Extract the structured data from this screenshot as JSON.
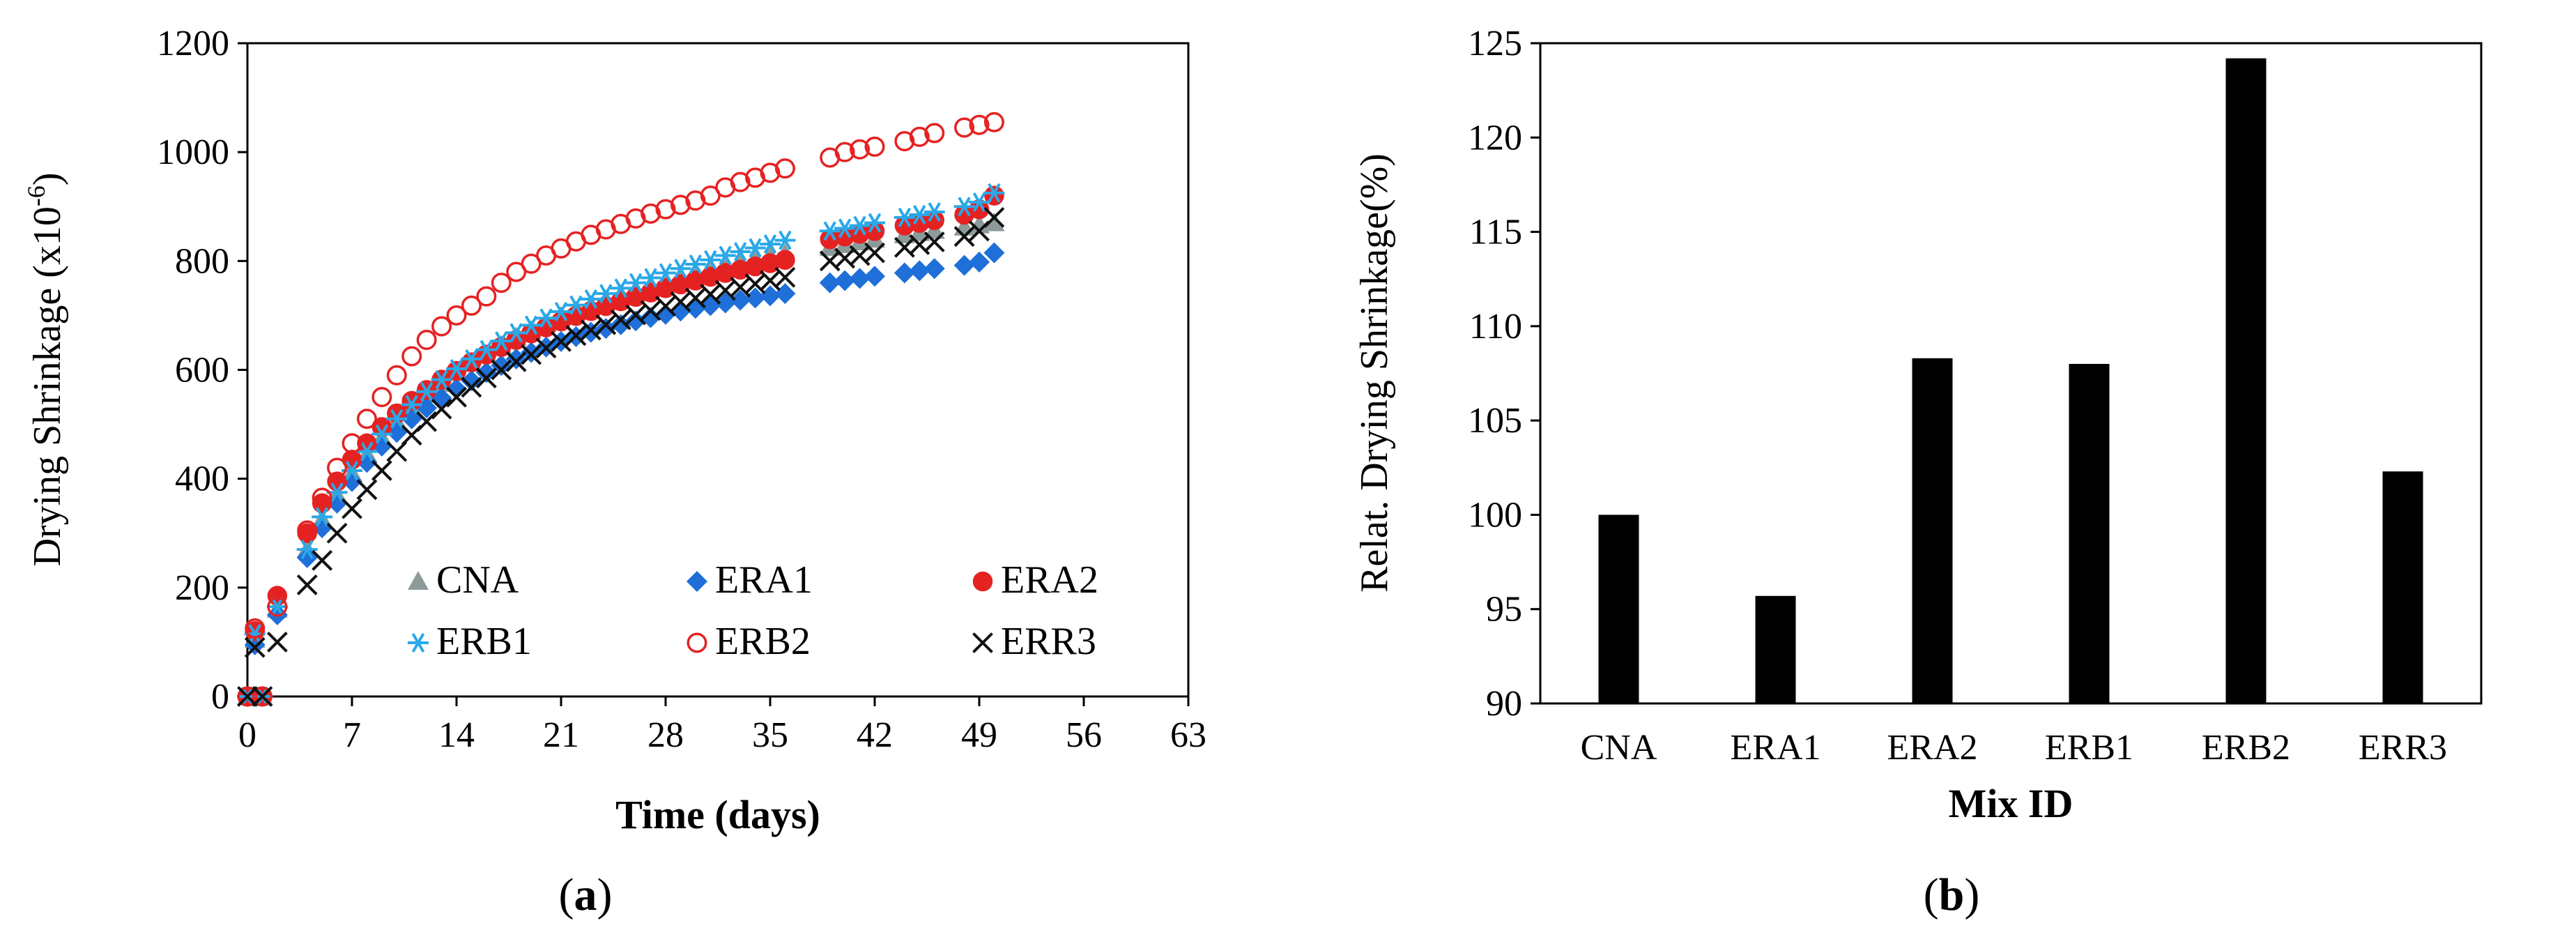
{
  "chart_data": [
    {
      "type": "scatter",
      "panel_label": "a",
      "xlabel": "Time (days)",
      "ylabel": "Drying Shrinkage (x10",
      "ylabel_exp": "-6",
      "ylabel_close": ")",
      "xlim": [
        0,
        63
      ],
      "ylim": [
        0,
        1200
      ],
      "x_ticks": [
        0,
        7,
        14,
        21,
        28,
        35,
        42,
        49,
        56,
        63
      ],
      "y_ticks": [
        0,
        200,
        400,
        600,
        800,
        1000,
        1200
      ],
      "grid": false,
      "legend": "inside-bottom-right",
      "series": [
        {
          "name": "CNA",
          "marker": "triangle",
          "color": "#8d9a9a",
          "x": [
            0,
            0.5,
            1,
            2,
            4,
            5,
            6,
            7,
            8,
            9,
            10,
            11,
            12,
            13,
            14,
            15,
            16,
            17,
            18,
            19,
            20,
            21,
            22,
            23,
            24,
            25,
            26,
            27,
            28,
            29,
            30,
            31,
            32,
            33,
            34,
            35,
            36,
            39,
            40,
            41,
            42,
            44,
            45,
            46,
            48,
            49,
            50
          ],
          "y": [
            0,
            105,
            0,
            160,
            270,
            325,
            370,
            410,
            445,
            475,
            505,
            530,
            555,
            575,
            595,
            612,
            628,
            645,
            660,
            672,
            685,
            698,
            708,
            718,
            728,
            738,
            747,
            755,
            763,
            770,
            777,
            784,
            790,
            796,
            802,
            808,
            813,
            825,
            830,
            835,
            840,
            848,
            852,
            856,
            862,
            866,
            870
          ]
        },
        {
          "name": "ERA1",
          "marker": "diamond",
          "color": "#1e6fd8",
          "x": [
            0,
            0.5,
            1,
            2,
            4,
            5,
            6,
            7,
            8,
            9,
            10,
            11,
            12,
            13,
            14,
            15,
            16,
            17,
            18,
            19,
            20,
            21,
            22,
            23,
            24,
            25,
            26,
            27,
            28,
            29,
            30,
            31,
            32,
            33,
            34,
            35,
            36,
            39,
            40,
            41,
            42,
            44,
            45,
            46,
            48,
            49,
            50
          ],
          "y": [
            0,
            95,
            0,
            150,
            255,
            310,
            355,
            395,
            430,
            460,
            485,
            510,
            530,
            548,
            565,
            580,
            595,
            608,
            620,
            632,
            642,
            652,
            661,
            669,
            676,
            683,
            690,
            696,
            702,
            708,
            713,
            718,
            723,
            728,
            732,
            736,
            740,
            760,
            764,
            768,
            772,
            778,
            782,
            786,
            792,
            798,
            815
          ]
        },
        {
          "name": "ERA2",
          "marker": "circle-filled",
          "color": "#e52222",
          "x": [
            0,
            0.5,
            1,
            2,
            4,
            5,
            6,
            7,
            8,
            9,
            10,
            11,
            12,
            13,
            14,
            15,
            16,
            17,
            18,
            19,
            20,
            21,
            22,
            23,
            24,
            25,
            26,
            27,
            28,
            29,
            30,
            31,
            32,
            33,
            34,
            35,
            36,
            39,
            40,
            41,
            42,
            44,
            45,
            46,
            48,
            49,
            50
          ],
          "y": [
            0,
            120,
            0,
            185,
            300,
            355,
            395,
            435,
            465,
            495,
            520,
            543,
            563,
            582,
            598,
            614,
            628,
            642,
            655,
            667,
            678,
            689,
            699,
            708,
            717,
            726,
            734,
            742,
            750,
            757,
            764,
            771,
            778,
            784,
            790,
            796,
            802,
            840,
            845,
            850,
            855,
            865,
            870,
            875,
            885,
            895,
            920
          ]
        },
        {
          "name": "ERB1",
          "marker": "asterisk",
          "color": "#2aa8e8",
          "x": [
            0,
            0.5,
            1,
            2,
            4,
            5,
            6,
            7,
            8,
            9,
            10,
            11,
            12,
            13,
            14,
            15,
            16,
            17,
            18,
            19,
            20,
            21,
            22,
            23,
            24,
            25,
            26,
            27,
            28,
            29,
            30,
            31,
            32,
            33,
            34,
            35,
            36,
            39,
            40,
            41,
            42,
            44,
            45,
            46,
            48,
            49,
            50
          ],
          "y": [
            0,
            115,
            0,
            165,
            270,
            330,
            375,
            415,
            450,
            482,
            510,
            536,
            560,
            582,
            602,
            620,
            637,
            653,
            668,
            682,
            695,
            707,
            719,
            730,
            740,
            750,
            760,
            769,
            778,
            786,
            794,
            802,
            810,
            817,
            824,
            831,
            838,
            855,
            860,
            865,
            870,
            880,
            885,
            890,
            900,
            908,
            925
          ]
        },
        {
          "name": "ERB2",
          "marker": "circle-open",
          "color": "#e52222",
          "x": [
            0,
            0.5,
            1,
            2,
            4,
            5,
            6,
            7,
            8,
            9,
            10,
            11,
            12,
            13,
            14,
            15,
            16,
            17,
            18,
            19,
            20,
            21,
            22,
            23,
            24,
            25,
            26,
            27,
            28,
            29,
            30,
            31,
            32,
            33,
            34,
            35,
            36,
            39,
            40,
            41,
            42,
            44,
            45,
            46,
            48,
            49,
            50
          ],
          "y": [
            0,
            125,
            0,
            165,
            305,
            365,
            420,
            465,
            510,
            550,
            590,
            625,
            655,
            680,
            700,
            718,
            735,
            760,
            780,
            795,
            810,
            823,
            836,
            848,
            858,
            868,
            878,
            887,
            895,
            903,
            911,
            920,
            935,
            945,
            953,
            962,
            970,
            990,
            1000,
            1005,
            1010,
            1020,
            1028,
            1035,
            1045,
            1050,
            1055
          ]
        },
        {
          "name": "ERR3",
          "marker": "x",
          "color": "#111111",
          "x": [
            0,
            0.5,
            1,
            2,
            4,
            5,
            6,
            7,
            8,
            9,
            10,
            11,
            12,
            13,
            14,
            15,
            16,
            17,
            18,
            19,
            20,
            21,
            22,
            23,
            24,
            25,
            26,
            27,
            28,
            29,
            30,
            31,
            32,
            33,
            34,
            35,
            36,
            39,
            40,
            41,
            42,
            44,
            45,
            46,
            48,
            49,
            50
          ],
          "y": [
            0,
            90,
            0,
            100,
            205,
            250,
            300,
            345,
            380,
            415,
            450,
            480,
            505,
            528,
            550,
            568,
            585,
            600,
            615,
            628,
            640,
            652,
            663,
            673,
            683,
            692,
            701,
            709,
            717,
            725,
            732,
            739,
            746,
            752,
            758,
            764,
            770,
            800,
            805,
            810,
            815,
            825,
            830,
            835,
            845,
            855,
            880
          ]
        }
      ]
    },
    {
      "type": "bar",
      "panel_label": "b",
      "xlabel": "Mix ID",
      "ylabel": "Relat. Drying Shrinkage(%)",
      "categories": [
        "CNA",
        "ERA1",
        "ERA2",
        "ERB1",
        "ERB2",
        "ERR3"
      ],
      "values": [
        100,
        95.7,
        108.3,
        108.0,
        124.2,
        102.3
      ],
      "ylim": [
        90,
        125
      ],
      "y_ticks": [
        90,
        95,
        100,
        105,
        110,
        115,
        120,
        125
      ],
      "bar_color": "#000000",
      "grid": false
    }
  ],
  "captions": {
    "a_open": "(",
    "a_letter": "a",
    "a_close": ")",
    "b_open": "(",
    "b_letter": "b",
    "b_close": ")"
  }
}
